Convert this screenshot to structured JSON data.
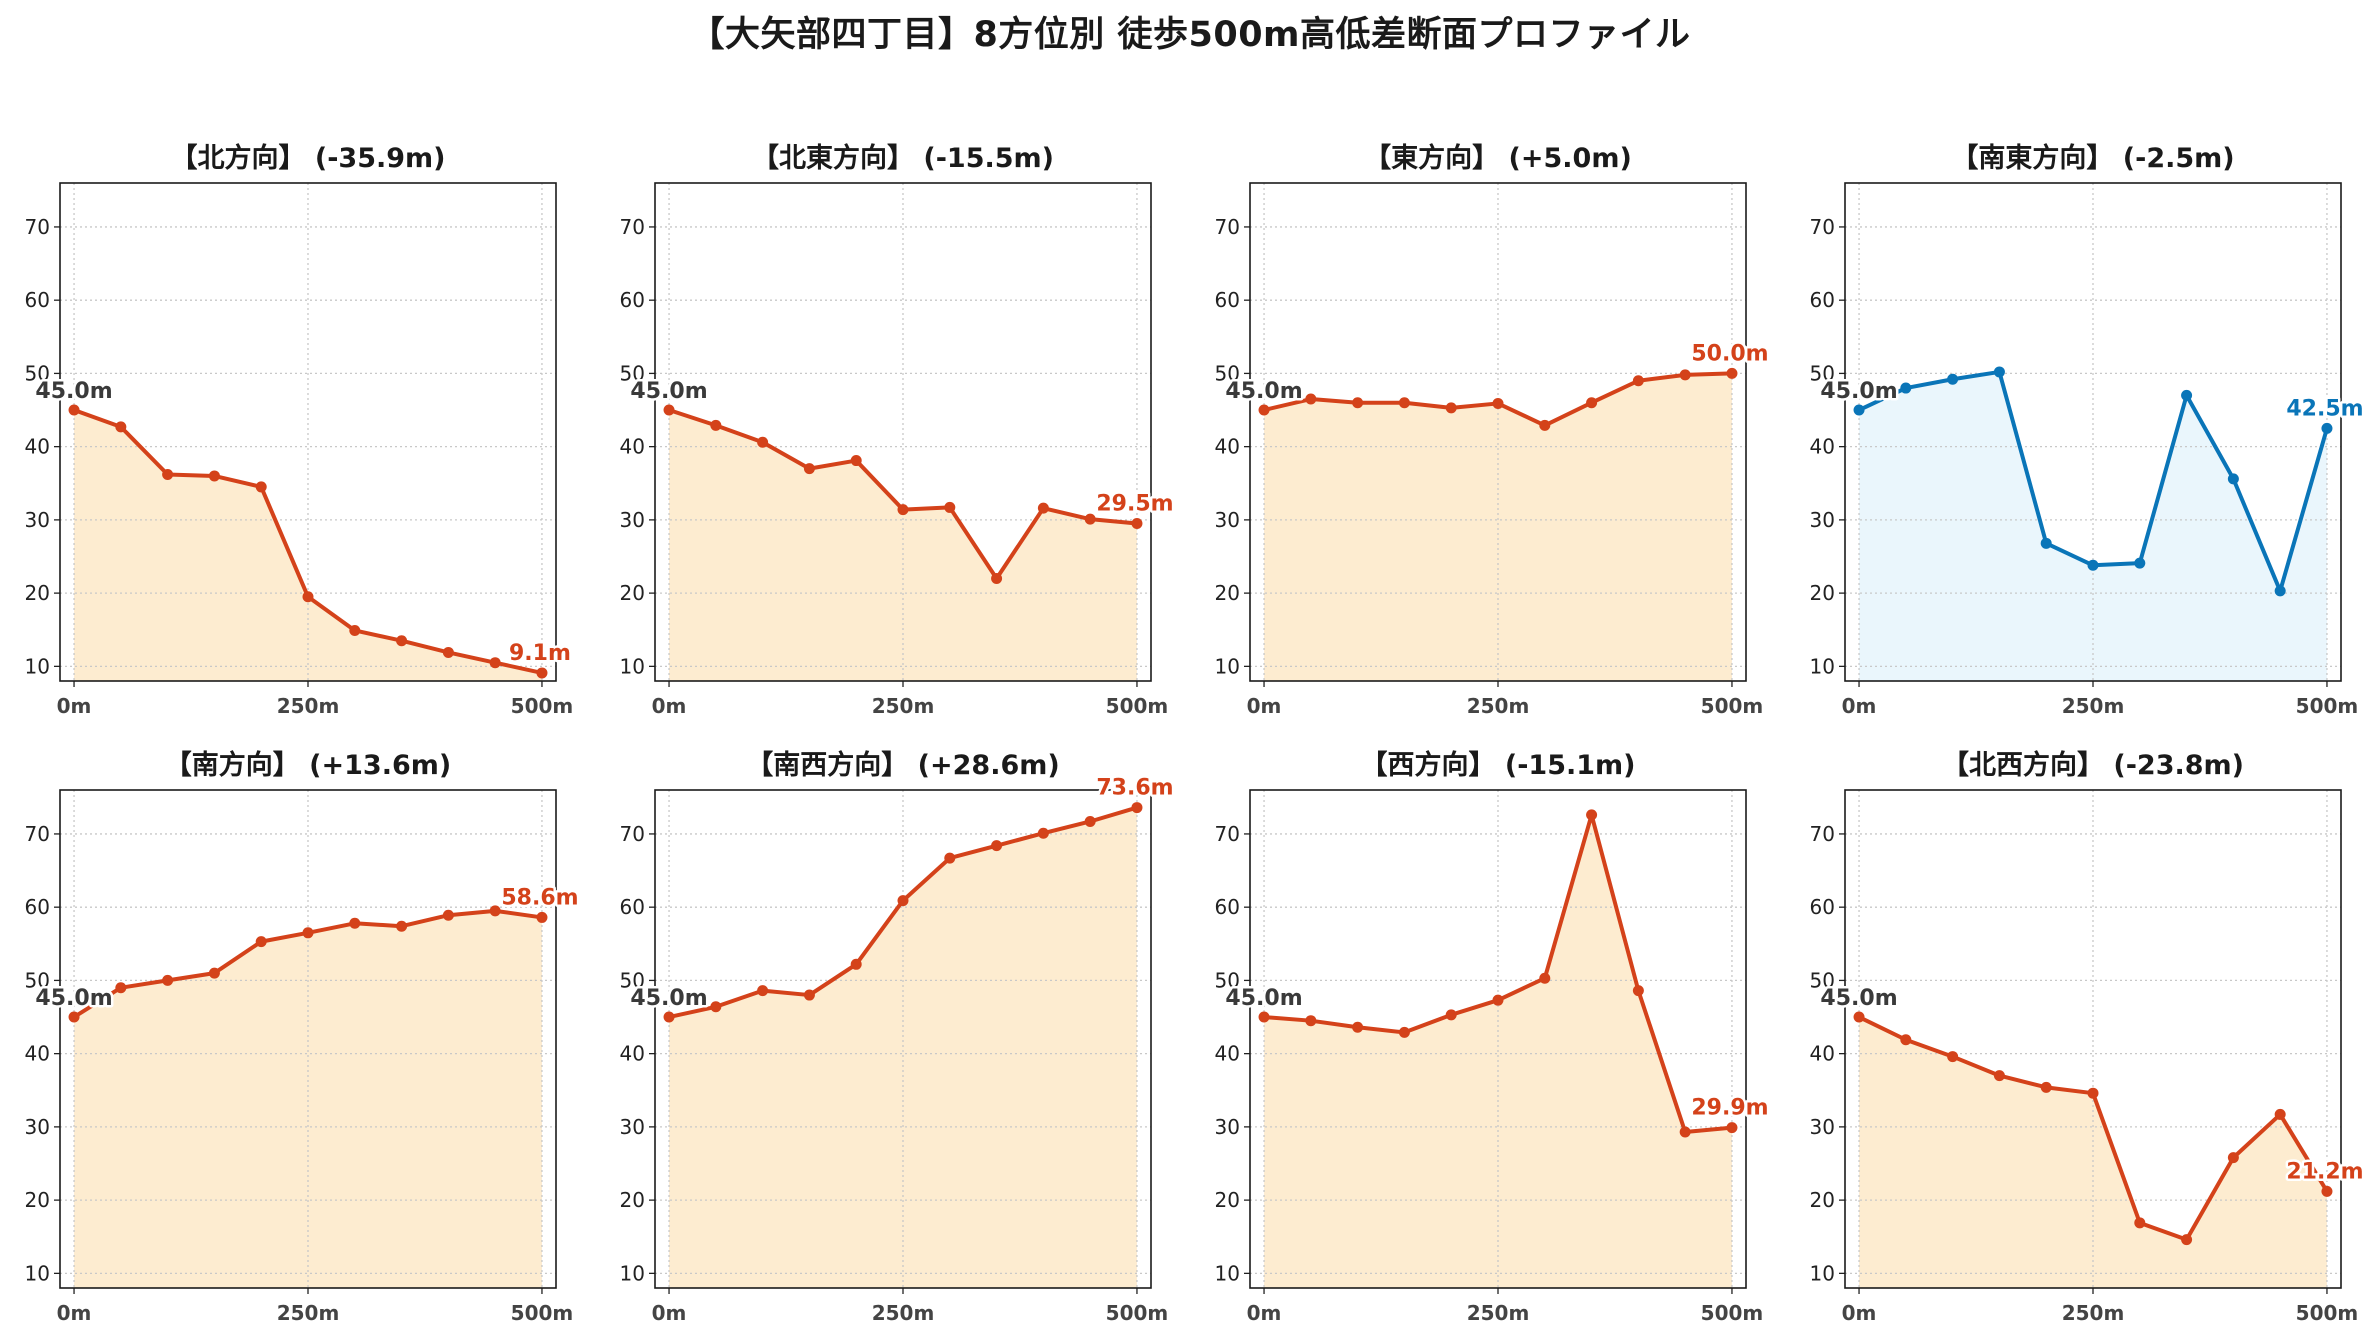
{
  "title": "【大矢部四丁目】8方位別 徒歩500m高低差断面プロファイル",
  "colors": {
    "down_line": "#d4421a",
    "down_fill": "#fdecd0",
    "flat_line": "#0a75b8",
    "flat_fill": "#eaf6fc",
    "start_label": "#3a3a3a"
  },
  "chart_data": [
    {
      "type": "area",
      "title": "【北方向】 (-35.9m)",
      "style": "orange",
      "x": [
        0,
        50,
        100,
        150,
        200,
        250,
        300,
        350,
        400,
        450,
        500
      ],
      "y": [
        45.0,
        42.7,
        36.2,
        36.0,
        34.5,
        19.5,
        14.9,
        13.5,
        11.9,
        10.5,
        9.1
      ],
      "start_label": "45.0m",
      "end_label": "9.1m",
      "xticks": [
        "0m",
        "250m",
        "500m"
      ],
      "yticks": [
        "10",
        "20",
        "30",
        "40",
        "50",
        "60",
        "70"
      ],
      "ylim": [
        8,
        76
      ],
      "xlim": [
        -15,
        515
      ],
      "grid": true
    },
    {
      "type": "area",
      "title": "【北東方向】 (-15.5m)",
      "style": "orange",
      "x": [
        0,
        50,
        100,
        150,
        200,
        250,
        300,
        350,
        400,
        450,
        500
      ],
      "y": [
        45.0,
        42.9,
        40.6,
        37.0,
        38.1,
        31.4,
        31.7,
        22.0,
        31.6,
        30.1,
        29.5
      ],
      "start_label": "45.0m",
      "end_label": "29.5m",
      "xticks": [
        "0m",
        "250m",
        "500m"
      ],
      "yticks": [
        "10",
        "20",
        "30",
        "40",
        "50",
        "60",
        "70"
      ],
      "ylim": [
        8,
        76
      ],
      "xlim": [
        -15,
        515
      ],
      "grid": true
    },
    {
      "type": "area",
      "title": "【東方向】 (+5.0m)",
      "style": "orange",
      "x": [
        0,
        50,
        100,
        150,
        200,
        250,
        300,
        350,
        400,
        450,
        500
      ],
      "y": [
        45.0,
        46.5,
        46.0,
        46.0,
        45.3,
        45.9,
        42.9,
        46.0,
        49.0,
        49.8,
        50.0
      ],
      "start_label": "45.0m",
      "end_label": "50.0m",
      "xticks": [
        "0m",
        "250m",
        "500m"
      ],
      "yticks": [
        "10",
        "20",
        "30",
        "40",
        "50",
        "60",
        "70"
      ],
      "ylim": [
        8,
        76
      ],
      "xlim": [
        -15,
        515
      ],
      "grid": true
    },
    {
      "type": "area",
      "title": "【南東方向】 (-2.5m)",
      "style": "blue",
      "x": [
        0,
        50,
        100,
        150,
        200,
        250,
        300,
        350,
        400,
        450,
        500
      ],
      "y": [
        45.0,
        48.0,
        49.2,
        50.2,
        26.8,
        23.8,
        24.1,
        47.0,
        35.6,
        20.3,
        42.5
      ],
      "start_label": "45.0m",
      "end_label": "42.5m",
      "xticks": [
        "0m",
        "250m",
        "500m"
      ],
      "yticks": [
        "10",
        "20",
        "30",
        "40",
        "50",
        "60",
        "70"
      ],
      "ylim": [
        8,
        76
      ],
      "xlim": [
        -15,
        515
      ],
      "grid": true
    },
    {
      "type": "area",
      "title": "【南方向】 (+13.6m)",
      "style": "orange",
      "x": [
        0,
        50,
        100,
        150,
        200,
        250,
        300,
        350,
        400,
        450,
        500
      ],
      "y": [
        45.0,
        49.0,
        50.0,
        51.0,
        55.3,
        56.5,
        57.8,
        57.4,
        58.9,
        59.5,
        58.6
      ],
      "start_label": "45.0m",
      "end_label": "58.6m",
      "xticks": [
        "0m",
        "250m",
        "500m"
      ],
      "yticks": [
        "10",
        "20",
        "30",
        "40",
        "50",
        "60",
        "70"
      ],
      "ylim": [
        8,
        76
      ],
      "xlim": [
        -15,
        515
      ],
      "grid": true
    },
    {
      "type": "area",
      "title": "【南西方向】 (+28.6m)",
      "style": "orange",
      "x": [
        0,
        50,
        100,
        150,
        200,
        250,
        300,
        350,
        400,
        450,
        500
      ],
      "y": [
        45.0,
        46.4,
        48.6,
        48.0,
        52.2,
        60.9,
        66.7,
        68.4,
        70.1,
        71.7,
        73.6
      ],
      "start_label": "45.0m",
      "end_label": "73.6m",
      "xticks": [
        "0m",
        "250m",
        "500m"
      ],
      "yticks": [
        "10",
        "20",
        "30",
        "40",
        "50",
        "60",
        "70"
      ],
      "ylim": [
        8,
        76
      ],
      "xlim": [
        -15,
        515
      ],
      "grid": true
    },
    {
      "type": "area",
      "title": "【西方向】 (-15.1m)",
      "style": "orange",
      "x": [
        0,
        50,
        100,
        150,
        200,
        250,
        300,
        350,
        400,
        450,
        500
      ],
      "y": [
        45.0,
        44.5,
        43.6,
        42.9,
        45.3,
        47.3,
        50.3,
        72.6,
        48.6,
        29.3,
        29.9
      ],
      "start_label": "45.0m",
      "end_label": "29.9m",
      "xticks": [
        "0m",
        "250m",
        "500m"
      ],
      "yticks": [
        "10",
        "20",
        "30",
        "40",
        "50",
        "60",
        "70"
      ],
      "ylim": [
        8,
        76
      ],
      "xlim": [
        -15,
        515
      ],
      "grid": true
    },
    {
      "type": "area",
      "title": "【北西方向】 (-23.8m)",
      "style": "orange",
      "x": [
        0,
        50,
        100,
        150,
        200,
        250,
        300,
        350,
        400,
        450,
        500
      ],
      "y": [
        45.0,
        41.9,
        39.6,
        37.0,
        35.4,
        34.6,
        16.9,
        14.6,
        25.8,
        31.7,
        21.2
      ],
      "start_label": "45.0m",
      "end_label": "21.2m",
      "xticks": [
        "0m",
        "250m",
        "500m"
      ],
      "yticks": [
        "10",
        "20",
        "30",
        "40",
        "50",
        "60",
        "70"
      ],
      "ylim": [
        8,
        76
      ],
      "xlim": [
        -15,
        515
      ],
      "grid": true
    }
  ]
}
